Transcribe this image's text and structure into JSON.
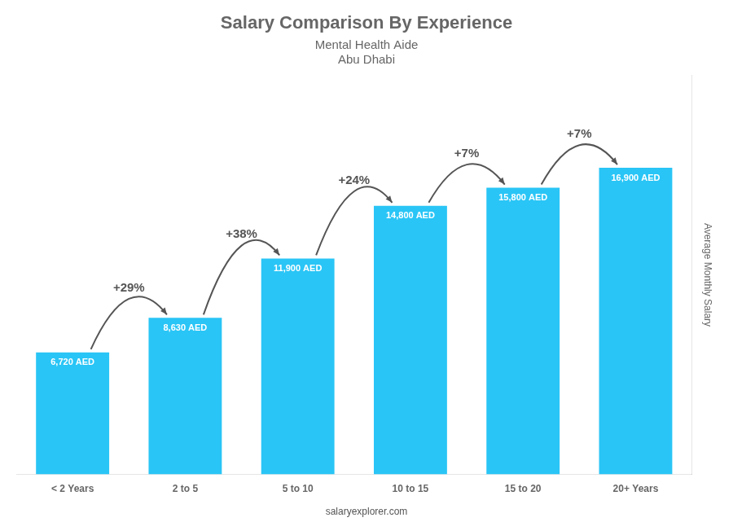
{
  "chart_data": {
    "type": "bar",
    "title": "Salary Comparison By Experience",
    "subtitle": [
      "Mental Health Aide",
      "Abu Dhabi"
    ],
    "y_label": "Average Monthly Salary",
    "footer": "salaryexplorer.com",
    "categories": [
      "< 2 Years",
      "2 to 5",
      "5 to 10",
      "10 to 15",
      "15 to 20",
      "20+ Years"
    ],
    "values": [
      6720,
      8630,
      11900,
      14800,
      15800,
      16900
    ],
    "value_labels": [
      "6,720 AED",
      "8,630 AED",
      "11,900 AED",
      "14,800 AED",
      "15,800 AED",
      "16,900 AED"
    ],
    "data_labels": true,
    "annotations": [
      "+29%",
      "+38%",
      "+24%",
      "+7%",
      "+7%"
    ],
    "color": "#29c5f6",
    "ylim": [
      0,
      22000
    ],
    "grid": false,
    "tick_labels": "x"
  }
}
